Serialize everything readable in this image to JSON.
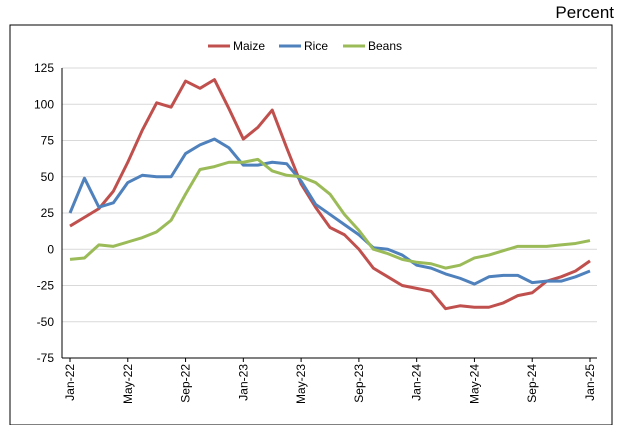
{
  "chart_data": {
    "type": "line",
    "unit_label": "Percent",
    "categories": [
      "Jan-22",
      null,
      null,
      null,
      "May-22",
      null,
      null,
      null,
      "Sep-22",
      null,
      null,
      null,
      "Jan-23",
      null,
      null,
      null,
      "May-23",
      null,
      null,
      null,
      "Sep-23",
      null,
      null,
      null,
      "Jan-24",
      null,
      null,
      null,
      "May-24",
      null,
      null,
      null,
      "Sep-24",
      null,
      null,
      null,
      "Jan-25"
    ],
    "series": [
      {
        "name": "Maize",
        "color": "#c0504d",
        "values": [
          16,
          22,
          28,
          40,
          60,
          82,
          101,
          98,
          116,
          111,
          117,
          97,
          76,
          84,
          96,
          70,
          45,
          29,
          15,
          10,
          0,
          -13,
          -19,
          -25,
          -27,
          -29,
          -41,
          -39,
          -40,
          -40,
          -37,
          -32,
          -30,
          -22,
          -19,
          -15,
          -8
        ]
      },
      {
        "name": "Rice",
        "color": "#4f81bd",
        "values": [
          25,
          49,
          29,
          32,
          46,
          51,
          50,
          50,
          66,
          72,
          76,
          70,
          58,
          58,
          60,
          59,
          47,
          31,
          24,
          17,
          10,
          1,
          0,
          -4,
          -11,
          -13,
          -17,
          -20,
          -24,
          -19,
          -18,
          -18,
          -23,
          -22,
          -22,
          -19,
          -15
        ]
      },
      {
        "name": "Beans",
        "color": "#9bbb59",
        "values": [
          -7,
          -6,
          3,
          2,
          5,
          8,
          12,
          20,
          38,
          55,
          57,
          60,
          60,
          62,
          54,
          51,
          50,
          46,
          38,
          24,
          13,
          0,
          -3,
          -7,
          -9,
          -10,
          -13,
          -11,
          -6,
          -4,
          -1,
          2,
          2,
          2,
          3,
          4,
          6
        ]
      }
    ],
    "ylim": [
      -75,
      125
    ],
    "yticks": [
      -75,
      -50,
      -25,
      0,
      25,
      50,
      75,
      100,
      125
    ],
    "grid": true,
    "legend": "top"
  }
}
